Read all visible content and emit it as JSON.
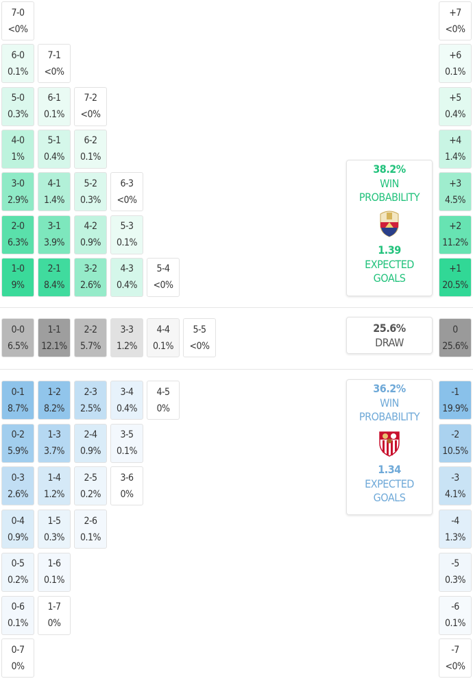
{
  "colors": {
    "home": "#2fd895",
    "away": "#86bfe9",
    "draw": "#9a9a9a",
    "home_text": "#22c27c",
    "away_text": "#6fa9d8",
    "draw_text": "#555555"
  },
  "home": {
    "win_pct": "38.2%",
    "win_label": "WIN PROBABILITY",
    "xg": "1.39",
    "xg_label": "EXPECTED GOALS",
    "crest_icon": "elche-crest-icon",
    "rows": [
      [
        [
          "7-0",
          "<0%"
        ]
      ],
      [
        [
          "6-0",
          "0.1%"
        ],
        [
          "7-1",
          "<0%"
        ]
      ],
      [
        [
          "5-0",
          "0.3%"
        ],
        [
          "6-1",
          "0.1%"
        ],
        [
          "7-2",
          "<0%"
        ]
      ],
      [
        [
          "4-0",
          "1%"
        ],
        [
          "5-1",
          "0.4%"
        ],
        [
          "6-2",
          "0.1%"
        ]
      ],
      [
        [
          "3-0",
          "2.9%"
        ],
        [
          "4-1",
          "1.4%"
        ],
        [
          "5-2",
          "0.3%"
        ],
        [
          "6-3",
          "<0%"
        ]
      ],
      [
        [
          "2-0",
          "6.3%"
        ],
        [
          "3-1",
          "3.9%"
        ],
        [
          "4-2",
          "0.9%"
        ],
        [
          "5-3",
          "0.1%"
        ]
      ],
      [
        [
          "1-0",
          "9%"
        ],
        [
          "2-1",
          "8.4%"
        ],
        [
          "3-2",
          "2.6%"
        ],
        [
          "4-3",
          "0.4%"
        ],
        [
          "5-4",
          "<0%"
        ]
      ]
    ],
    "margins": [
      [
        "+7",
        "<0%"
      ],
      [
        "+6",
        "0.1%"
      ],
      [
        "+5",
        "0.4%"
      ],
      [
        "+4",
        "1.4%"
      ],
      [
        "+3",
        "4.5%"
      ],
      [
        "+2",
        "11.2%"
      ],
      [
        "+1",
        "20.5%"
      ]
    ]
  },
  "draw": {
    "pct": "25.6%",
    "label": "DRAW",
    "cells": [
      [
        "0-0",
        "6.5%"
      ],
      [
        "1-1",
        "12.1%"
      ],
      [
        "2-2",
        "5.7%"
      ],
      [
        "3-3",
        "1.2%"
      ],
      [
        "4-4",
        "0.1%"
      ],
      [
        "5-5",
        "<0%"
      ]
    ],
    "margin": [
      "0",
      "25.6%"
    ]
  },
  "away": {
    "win_pct": "36.2%",
    "win_label": "WIN PROBABILITY",
    "xg": "1.34",
    "xg_label": "EXPECTED GOALS",
    "crest_icon": "sevilla-crest-icon",
    "rows": [
      [
        [
          "0-1",
          "8.7%"
        ],
        [
          "1-2",
          "8.2%"
        ],
        [
          "2-3",
          "2.5%"
        ],
        [
          "3-4",
          "0.4%"
        ],
        [
          "4-5",
          "0%"
        ]
      ],
      [
        [
          "0-2",
          "5.9%"
        ],
        [
          "1-3",
          "3.7%"
        ],
        [
          "2-4",
          "0.9%"
        ],
        [
          "3-5",
          "0.1%"
        ]
      ],
      [
        [
          "0-3",
          "2.6%"
        ],
        [
          "1-4",
          "1.2%"
        ],
        [
          "2-5",
          "0.2%"
        ],
        [
          "3-6",
          "0%"
        ]
      ],
      [
        [
          "0-4",
          "0.9%"
        ],
        [
          "1-5",
          "0.3%"
        ],
        [
          "2-6",
          "0.1%"
        ]
      ],
      [
        [
          "0-5",
          "0.2%"
        ],
        [
          "1-6",
          "0.1%"
        ]
      ],
      [
        [
          "0-6",
          "0.1%"
        ],
        [
          "1-7",
          "0%"
        ]
      ],
      [
        [
          "0-7",
          "0%"
        ]
      ]
    ],
    "margins": [
      [
        "-1",
        "19.9%"
      ],
      [
        "-2",
        "10.5%"
      ],
      [
        "-3",
        "4.1%"
      ],
      [
        "-4",
        "1.3%"
      ],
      [
        "-5",
        "0.3%"
      ],
      [
        "-6",
        "0.1%"
      ],
      [
        "-7",
        "<0%"
      ]
    ]
  }
}
